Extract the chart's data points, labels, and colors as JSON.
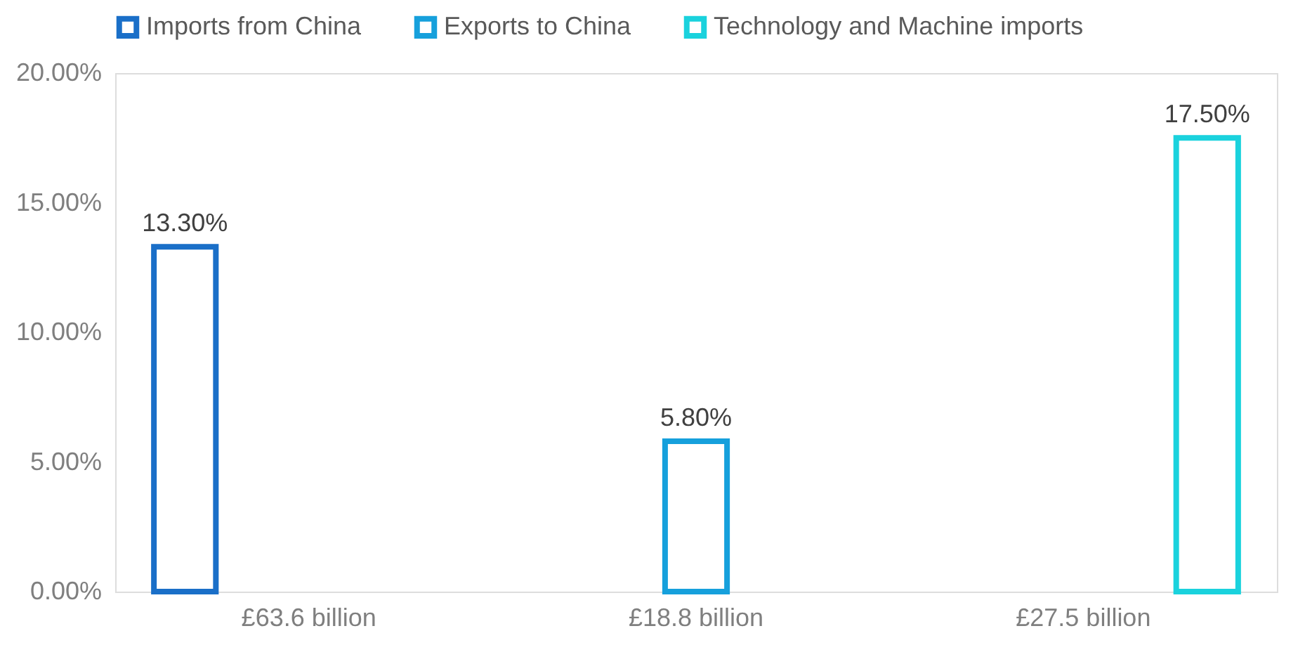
{
  "chart_data": {
    "type": "bar",
    "categories": [
      "£63.6 billion",
      "£18.8 billion",
      "£27.5 billion"
    ],
    "series": [
      {
        "name": "Imports from China",
        "color": "#1a6fc8",
        "values": [
          13.3,
          null,
          null
        ],
        "value_labels": [
          "13.30%",
          null,
          null
        ]
      },
      {
        "name": "Exports to China",
        "color": "#16a0dc",
        "values": [
          null,
          5.8,
          null
        ],
        "value_labels": [
          null,
          "5.80%",
          null
        ]
      },
      {
        "name": "Technology and Machine imports",
        "color": "#1ad2dd",
        "values": [
          null,
          null,
          17.5
        ],
        "value_labels": [
          null,
          null,
          "17.50%"
        ]
      }
    ],
    "ylim": [
      0,
      20
    ],
    "yticks": [
      {
        "value": 0,
        "label": "0.00%"
      },
      {
        "value": 5,
        "label": "5.00%"
      },
      {
        "value": 10,
        "label": "10.00%"
      },
      {
        "value": 15,
        "label": "15.00%"
      },
      {
        "value": 20,
        "label": "20.00%"
      }
    ],
    "legend": "top",
    "grid": false
  }
}
